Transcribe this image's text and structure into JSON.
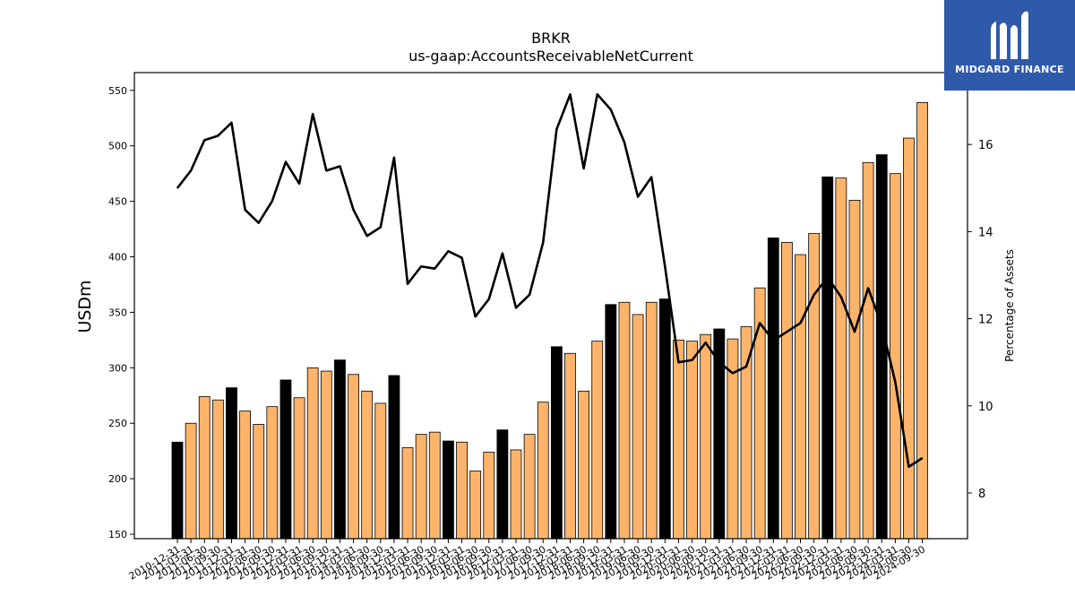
{
  "chart_data": {
    "type": "bar",
    "title": "BRKR",
    "subtitle": "us-gaap:AccountsReceivableNetCurrent",
    "ylabel": "USDm",
    "y2label": "Percentage of Assets",
    "ylim": [
      146,
      566
    ],
    "y2lim": [
      6.95,
      17.65
    ],
    "yticks": [
      150,
      200,
      250,
      300,
      350,
      400,
      450,
      500,
      550
    ],
    "y2ticks": [
      8,
      10,
      12,
      14,
      16
    ],
    "colors": {
      "bar_default": "#fdb46a",
      "bar_annual": "#000000",
      "line": "#000000"
    },
    "categories": [
      "2010-12-31",
      "2011-03-31",
      "2011-06-30",
      "2011-09-30",
      "2011-12-31",
      "2012-03-31",
      "2012-06-30",
      "2012-09-30",
      "2012-12-31",
      "2013-03-31",
      "2013-06-30",
      "2013-09-30",
      "2013-12-31",
      "2014-03-31",
      "2014-06-30",
      "2014-09-30",
      "2014-12-31",
      "2015-03-31",
      "2015-06-30",
      "2015-09-30",
      "2015-12-31",
      "2016-03-31",
      "2016-06-30",
      "2016-09-30",
      "2016-12-31",
      "2017-03-31",
      "2017-06-30",
      "2017-09-30",
      "2017-12-31",
      "2018-03-31",
      "2018-06-30",
      "2018-09-30",
      "2018-12-31",
      "2019-03-31",
      "2019-06-30",
      "2019-09-30",
      "2019-12-31",
      "2020-03-31",
      "2020-06-30",
      "2020-09-30",
      "2020-12-31",
      "2021-03-31",
      "2021-06-30",
      "2021-09-30",
      "2021-12-31",
      "2022-03-31",
      "2022-06-30",
      "2022-09-30",
      "2022-12-31",
      "2023-03-31",
      "2023-06-30",
      "2023-09-30",
      "2023-12-31",
      "2024-03-31",
      "2024-06-30",
      "2024-09-30"
    ],
    "series": [
      {
        "type": "bar",
        "values": [
          233,
          250,
          274,
          271,
          282,
          261,
          249,
          265,
          289,
          273,
          300,
          297,
          307,
          294,
          279,
          268,
          293,
          228,
          240,
          242,
          234,
          233,
          207,
          224,
          244,
          226,
          240,
          269,
          319,
          313,
          279,
          324,
          357,
          359,
          348,
          359,
          362,
          325,
          324,
          330,
          335,
          326,
          337,
          372,
          417,
          413,
          402,
          421,
          472,
          471,
          451,
          485,
          492,
          475,
          507,
          539
        ],
        "annual": [
          true,
          false,
          false,
          false,
          true,
          false,
          false,
          false,
          true,
          false,
          false,
          false,
          true,
          false,
          false,
          false,
          true,
          false,
          false,
          false,
          true,
          false,
          false,
          false,
          true,
          false,
          false,
          false,
          true,
          false,
          false,
          false,
          true,
          false,
          false,
          false,
          true,
          false,
          false,
          false,
          true,
          false,
          false,
          false,
          true,
          false,
          false,
          false,
          true,
          false,
          false,
          false,
          true,
          false,
          false,
          false
        ]
      },
      {
        "type": "line",
        "axis": "right",
        "values": [
          15.0,
          15.4,
          16.1,
          16.2,
          16.5,
          14.5,
          14.2,
          14.7,
          15.6,
          15.1,
          16.7,
          15.4,
          15.5,
          14.5,
          13.9,
          14.1,
          15.7,
          12.8,
          13.2,
          13.15,
          13.55,
          13.4,
          12.05,
          12.45,
          13.5,
          12.25,
          12.55,
          13.75,
          16.35,
          17.15,
          15.45,
          17.15,
          16.8,
          16.05,
          14.8,
          15.25,
          13.2,
          11.0,
          11.05,
          11.45,
          11.0,
          10.75,
          10.9,
          11.9,
          11.5,
          11.7,
          11.9,
          12.55,
          12.95,
          12.5,
          11.7,
          12.7,
          11.85,
          10.55,
          8.6,
          8.8
        ]
      }
    ]
  },
  "logo": {
    "text": "MIDGARD FINANCE"
  }
}
